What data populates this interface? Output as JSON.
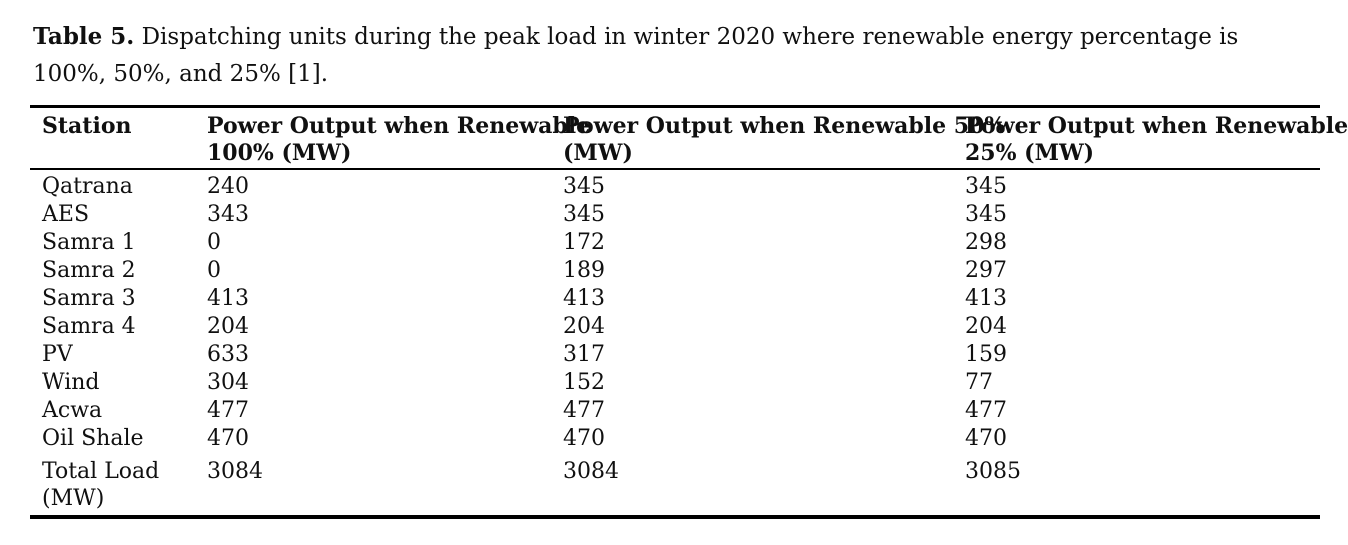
{
  "caption": {
    "label": "Table 5.",
    "line1": "Dispatching units during the peak load in winter 2020 where renewable energy percentage is",
    "line2": "100%, 50%, and 25% [1]."
  },
  "table": {
    "columns": [
      {
        "line1": "Station",
        "line2": ""
      },
      {
        "line1": "Power Output when Renewable",
        "line2": "100% (MW)"
      },
      {
        "line1": "Power Output when Renewable 50%",
        "line2": "(MW)"
      },
      {
        "line1": "Power Output when Renewable",
        "line2": "25% (MW)"
      }
    ],
    "rows": [
      {
        "station": "Qatrana",
        "p100": "240",
        "p50": "345",
        "p25": "345"
      },
      {
        "station": "AES",
        "p100": "343",
        "p50": "345",
        "p25": "345"
      },
      {
        "station": "Samra 1",
        "p100": "0",
        "p50": "172",
        "p25": "298"
      },
      {
        "station": "Samra 2",
        "p100": "0",
        "p50": "189",
        "p25": "297"
      },
      {
        "station": "Samra 3",
        "p100": "413",
        "p50": "413",
        "p25": "413"
      },
      {
        "station": "Samra 4",
        "p100": "204",
        "p50": "204",
        "p25": "204"
      },
      {
        "station": "PV",
        "p100": "633",
        "p50": "317",
        "p25": "159"
      },
      {
        "station": "Wind",
        "p100": "304",
        "p50": "152",
        "p25": "77"
      },
      {
        "station": "Acwa",
        "p100": "477",
        "p50": "477",
        "p25": "477"
      },
      {
        "station": "Oil Shale",
        "p100": "470",
        "p50": "470",
        "p25": "470"
      }
    ],
    "total_row": {
      "label_line1": "Total Load",
      "label_line2": "(MW)",
      "p100": "3084",
      "p50": "3084",
      "p25": "3085"
    }
  },
  "colors": {
    "background": "#ffffff",
    "text": "#101010",
    "rule": "#000000"
  }
}
